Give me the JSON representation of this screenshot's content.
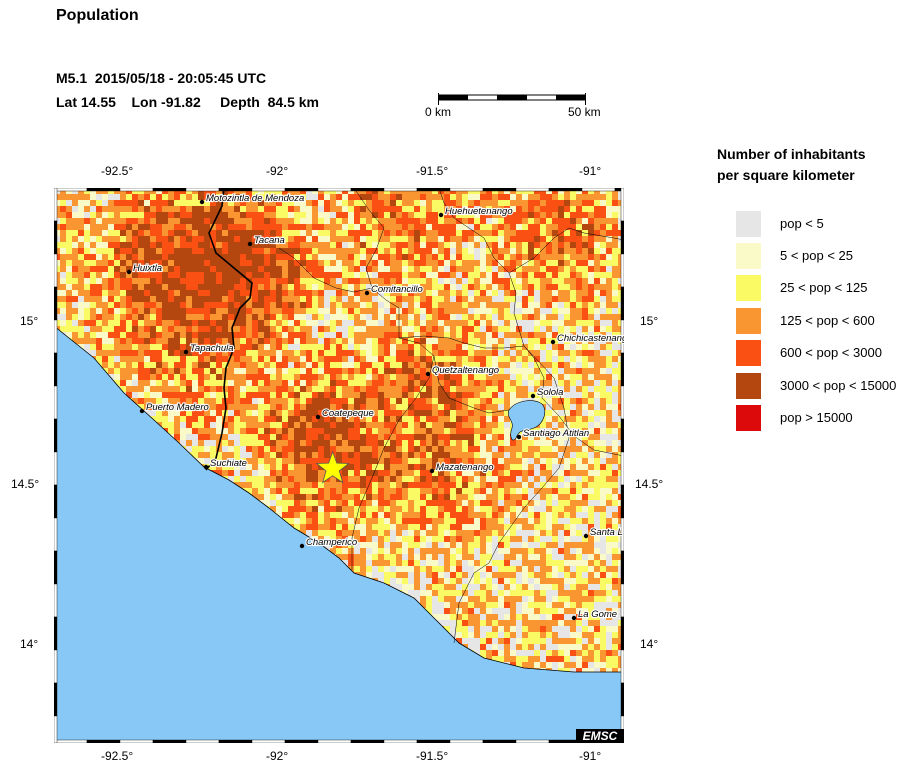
{
  "header": {
    "title": "Population",
    "event_line": "M5.1  2015/05/18 - 20:05:45 UTC",
    "location_line": "Lat 14.55    Lon -91.82     Depth  84.5 km"
  },
  "scale_bar": {
    "left_label": "0 km",
    "right_label": "50 km"
  },
  "map": {
    "lon_ticks": [
      "-92.5°",
      "-92°",
      "-91.5°",
      "-91°"
    ],
    "lat_ticks": [
      "15°",
      "14.5°",
      "14°"
    ],
    "epicenter": {
      "lat": 14.55,
      "lon": -91.82
    },
    "cities": [
      {
        "name": "Motozintla de Mendoza"
      },
      {
        "name": "Huehuetenango"
      },
      {
        "name": "Tacana"
      },
      {
        "name": "Huixtla"
      },
      {
        "name": "Comitancillo"
      },
      {
        "name": "Chichicastenango"
      },
      {
        "name": "Tapachula"
      },
      {
        "name": "Quetzaltenango"
      },
      {
        "name": "Solola"
      },
      {
        "name": "Puerto Madero"
      },
      {
        "name": "Coatepeque"
      },
      {
        "name": "Santiago Atitlan"
      },
      {
        "name": "Suchiate"
      },
      {
        "name": "Mazatenango"
      },
      {
        "name": "Santa L"
      },
      {
        "name": "Champerico"
      },
      {
        "name": "La Gome"
      }
    ],
    "watermark": "EMSC",
    "colors": {
      "ocean": "#88c8f7",
      "lake": "#88c8f7",
      "epicenter": "#ffff00"
    }
  },
  "legend": {
    "title_line1": "Number of inhabitants",
    "title_line2": "per square kilometer",
    "items": [
      {
        "label": "pop < 5",
        "color": "#e6e6e6"
      },
      {
        "label": "5 < pop < 25",
        "color": "#fafac8"
      },
      {
        "label": "25 < pop < 125",
        "color": "#fafa64"
      },
      {
        "label": "125 < pop < 600",
        "color": "#fa9632"
      },
      {
        "label": "600 < pop < 3000",
        "color": "#fa5014"
      },
      {
        "label": "3000 < pop < 15000",
        "color": "#b4460f"
      },
      {
        "label": "pop > 15000",
        "color": "#dc0a0a"
      }
    ]
  }
}
